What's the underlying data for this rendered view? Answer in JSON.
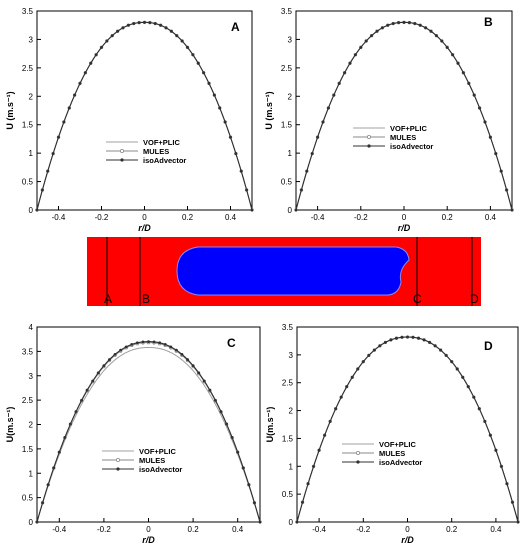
{
  "chart_data": [
    {
      "type": "line",
      "panel_label": "A",
      "xlabel": "r/D",
      "ylabel": "U (m.s⁻¹)",
      "xlim": [
        -0.5,
        0.5
      ],
      "ylim": [
        0,
        3.5
      ],
      "xticks": [
        -0.4,
        -0.2,
        0,
        0.2,
        0.4
      ],
      "yticks": [
        0,
        0.5,
        1,
        1.5,
        2,
        2.5,
        3,
        3.5
      ],
      "xtick_labels": [
        "-0.4",
        "-0.2",
        "0",
        "0.2",
        "0.4"
      ],
      "ytick_labels": [
        "0",
        "0.5",
        "1",
        "1.5",
        "2",
        "2.5",
        "3",
        "3.5"
      ],
      "legend_position": "center",
      "series": [
        {
          "name": "VOF+PLIC",
          "peak": 3.3,
          "style": "line",
          "color": "#a0a0a0"
        },
        {
          "name": "MULES",
          "peak": 3.3,
          "style": "line-open-markers",
          "color": "#8a8a8a"
        },
        {
          "name": "isoAdvector",
          "peak": 3.3,
          "style": "line-filled-markers",
          "color": "#303030"
        }
      ]
    },
    {
      "type": "line",
      "panel_label": "B",
      "xlabel": "r/D",
      "ylabel": "U (m.s⁻¹)",
      "xlim": [
        -0.5,
        0.5
      ],
      "ylim": [
        0,
        3.5
      ],
      "xticks": [
        -0.4,
        -0.2,
        0,
        0.2,
        0.4
      ],
      "yticks": [
        0,
        0.5,
        1,
        1.5,
        2,
        2.5,
        3,
        3.5
      ],
      "xtick_labels": [
        "-0.4",
        "-0.2",
        "0",
        "0.2",
        "0.4"
      ],
      "ytick_labels": [
        "0",
        "0.5",
        "1",
        "1.5",
        "2",
        "2.5",
        "3",
        "3.5"
      ],
      "legend_position": "center",
      "series": [
        {
          "name": "VOF+PLIC",
          "peak": 3.3,
          "style": "line",
          "color": "#a0a0a0"
        },
        {
          "name": "MULES",
          "peak": 3.3,
          "style": "line-open-markers",
          "color": "#8a8a8a"
        },
        {
          "name": "isoAdvector",
          "peak": 3.3,
          "style": "line-filled-markers",
          "color": "#303030"
        }
      ]
    },
    {
      "type": "line",
      "panel_label": "C",
      "xlabel": "r/D",
      "ylabel": "U(m.s⁻¹)",
      "xlim": [
        -0.5,
        0.5
      ],
      "ylim": [
        0,
        4
      ],
      "xticks": [
        -0.4,
        -0.2,
        0,
        0.2,
        0.4
      ],
      "yticks": [
        0,
        0.5,
        1,
        1.5,
        2,
        2.5,
        3,
        3.5,
        4
      ],
      "xtick_labels": [
        "-0.4",
        "-0.2",
        "0",
        "0.2",
        "0.4"
      ],
      "ytick_labels": [
        "0",
        "0.5",
        "1",
        "1.5",
        "2",
        "2.5",
        "3",
        "3.5",
        "4"
      ],
      "legend_position": "bottom-center",
      "series": [
        {
          "name": "VOF+PLIC",
          "peak": 3.58,
          "style": "line",
          "color": "#a0a0a0"
        },
        {
          "name": "MULES",
          "peak": 3.68,
          "style": "line-open-markers",
          "color": "#8a8a8a"
        },
        {
          "name": "isoAdvector",
          "peak": 3.7,
          "style": "line-filled-markers",
          "color": "#303030"
        }
      ]
    },
    {
      "type": "line",
      "panel_label": "D",
      "xlabel": "r/D",
      "ylabel": "U(m.s⁻¹)",
      "xlim": [
        -0.5,
        0.5
      ],
      "ylim": [
        0,
        3.5
      ],
      "xticks": [
        -0.4,
        -0.2,
        0,
        0.2,
        0.4
      ],
      "yticks": [
        0,
        0.5,
        1,
        1.5,
        2,
        2.5,
        3,
        3.5
      ],
      "xtick_labels": [
        "-0.4",
        "-0.2",
        "0",
        "0.2",
        "0.4"
      ],
      "ytick_labels": [
        "0",
        "0.5",
        "1",
        "1.5",
        "2",
        "2.5",
        "3",
        "3.5"
      ],
      "legend_position": "bottom-center",
      "series": [
        {
          "name": "VOF+PLIC",
          "peak": 3.32,
          "style": "line",
          "color": "#a0a0a0"
        },
        {
          "name": "MULES",
          "peak": 3.32,
          "style": "line-open-markers",
          "color": "#8a8a8a"
        },
        {
          "name": "isoAdvector",
          "peak": 3.32,
          "style": "line-filled-markers",
          "color": "#303030"
        }
      ]
    }
  ],
  "channel": {
    "background_color": "#ff0000",
    "bubble_color": "#0000ff",
    "stations": [
      "A",
      "B",
      "C",
      "D"
    ]
  }
}
